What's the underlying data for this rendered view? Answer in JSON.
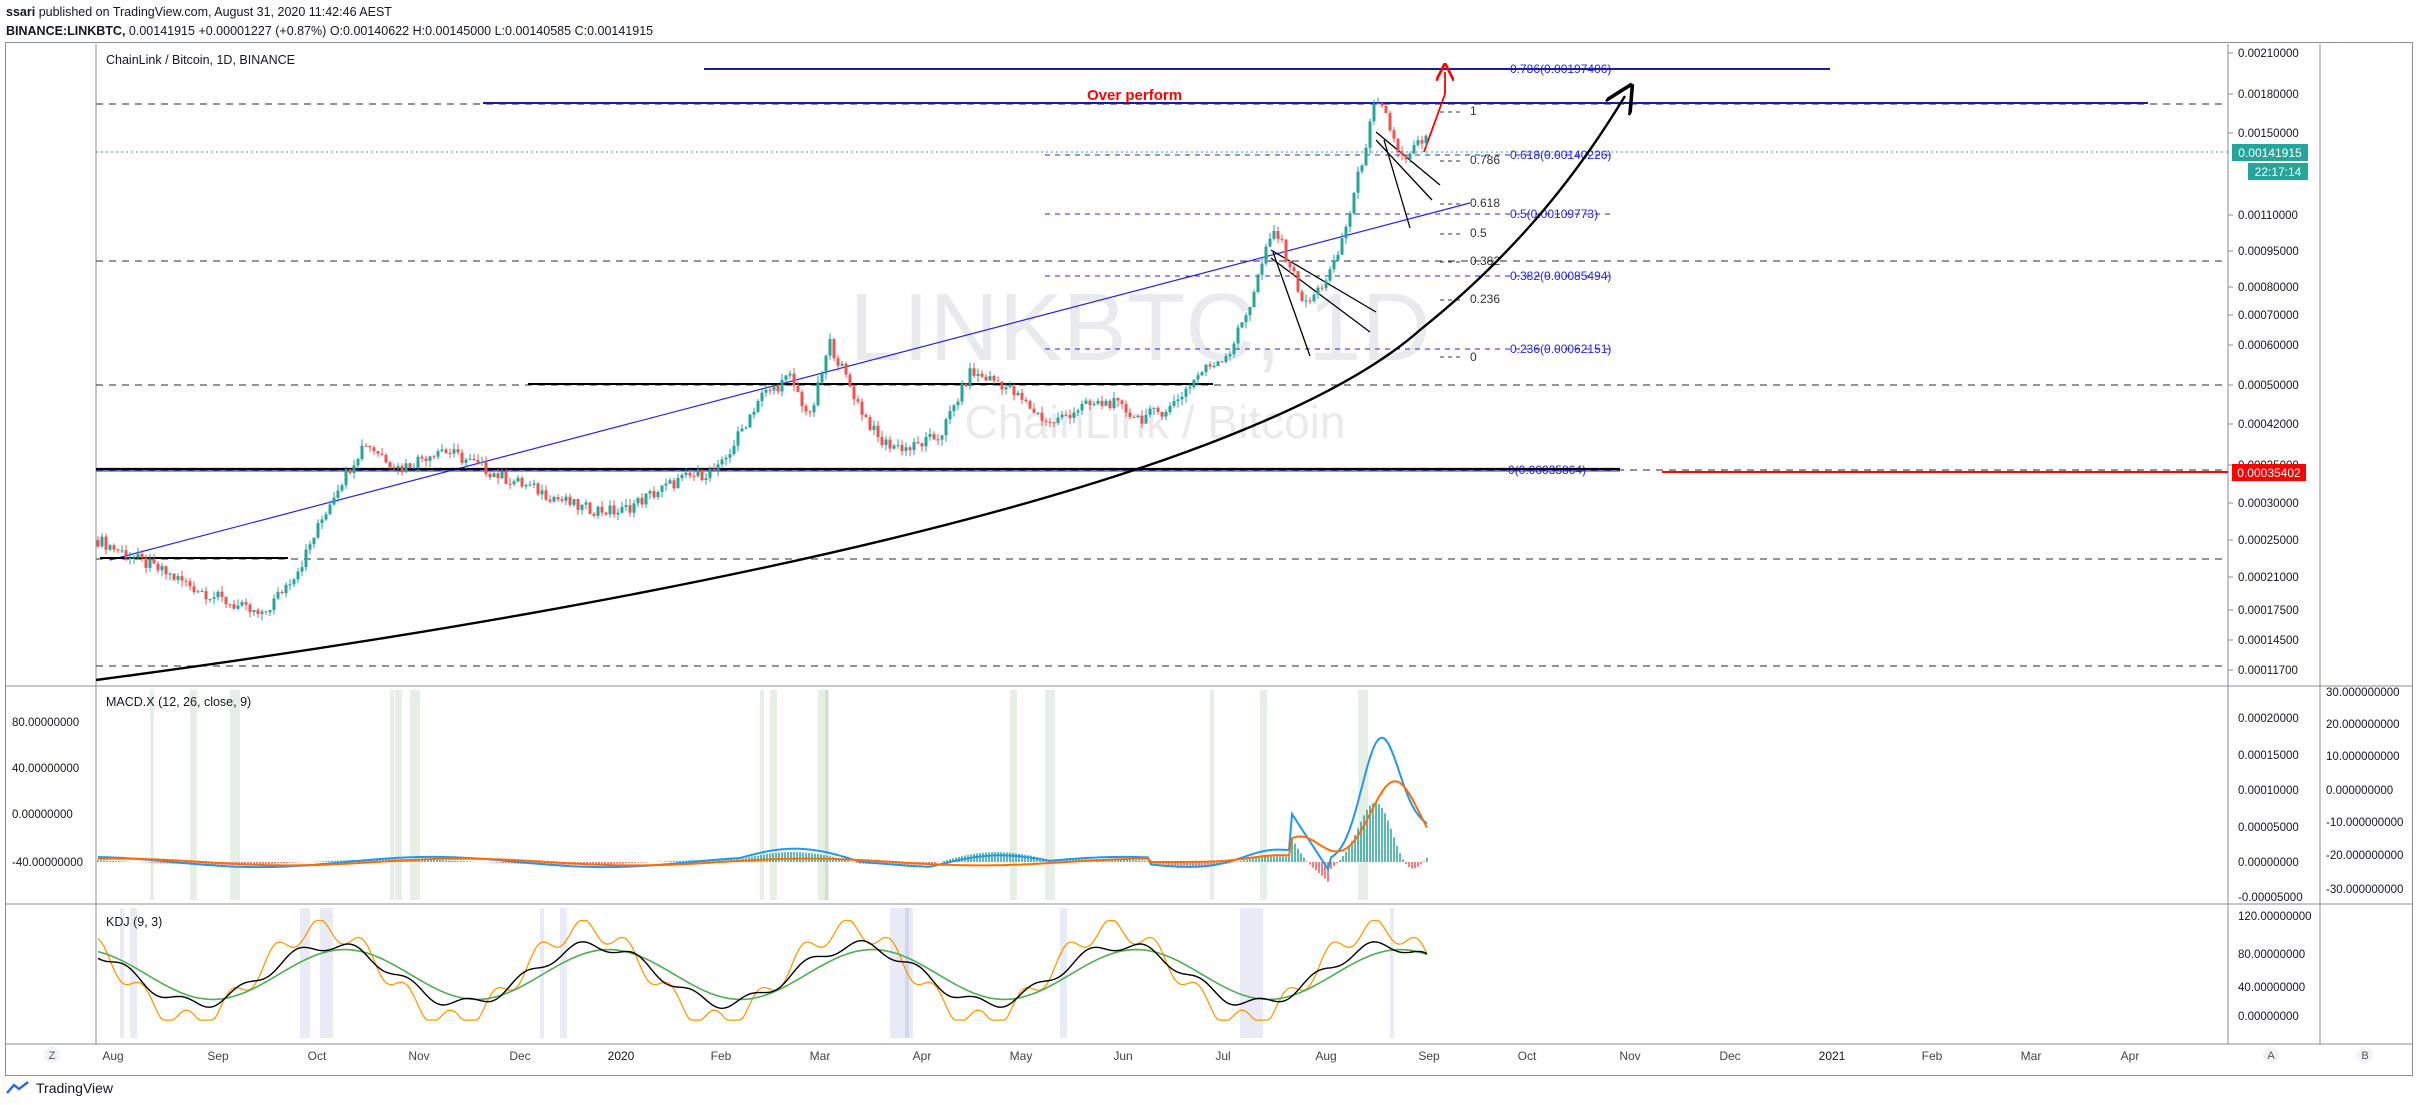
{
  "header": {
    "publisher": "ssari",
    "published_text": "published on TradingView.com, August 31, 2020 11:42:46 AEST",
    "symbol": "BINANCE:LINKBTC,",
    "last": "0.00141915",
    "change": "+0.00001227 (+0.87%)",
    "o_label": "O:",
    "o": "0.00140622",
    "h_label": "H:",
    "h": "0.00145000",
    "l_label": "L:",
    "l": "0.00140585",
    "c_label": "C:",
    "c": "0.00141915"
  },
  "legend": {
    "title": "ChainLink / Bitcoin, 1D, BINANCE"
  },
  "watermark": {
    "ticker": "LINKBTC, 1D",
    "name": "ChainLink / Bitcoin"
  },
  "annotations": {
    "over_perform": "Over perform",
    "fib_top_786": "0.786(0.00197406)",
    "fib_618": "0.618(0.00140226)",
    "fib_5": "0.5(0.00109773)",
    "fib_382": "0.382(0.00085494)",
    "fib_236": "0.236(0.00062151)",
    "fib_0": "0(0.00035864)",
    "small_fib": [
      "1",
      "0.786",
      "0.618",
      "0.5",
      "0.382",
      "0.236",
      "0"
    ]
  },
  "price_axis": {
    "ticks": [
      "0.00210000",
      "0.00180000",
      "0.00150000",
      "0.00110000",
      "0.00095000",
      "0.00080000",
      "0.00070000",
      "0.00060000",
      "0.00050000",
      "0.00042000",
      "0.00035000",
      "0.00030000",
      "0.00025000",
      "0.00021000",
      "0.00017500",
      "0.00014500",
      "0.00011700"
    ],
    "last_price_label": "0.00141915",
    "countdown_label": "22:17:14",
    "alert_label": "0.00035402"
  },
  "macd": {
    "title": "MACD.X (12, 26, close, 9)",
    "left_ticks": [
      "80.00000000",
      "40.00000000",
      "0.00000000",
      "-40.00000000"
    ],
    "mid_ticks": [
      "0.00020000",
      "0.00015000",
      "0.00010000",
      "0.00005000",
      "0.00000000",
      "-0.00005000"
    ],
    "right_ticks": [
      "30.000000000",
      "20.000000000",
      "10.000000000",
      "0.000000000",
      "-10.000000000",
      "-20.000000000",
      "-30.000000000"
    ]
  },
  "kdj": {
    "title": "KDJ (9, 3)",
    "ticks": [
      "120.00000000",
      "80.00000000",
      "40.00000000",
      "0.00000000"
    ]
  },
  "time_axis": {
    "labels": [
      "Aug",
      "Sep",
      "Oct",
      "Nov",
      "Dec",
      "2020",
      "Feb",
      "Mar",
      "Apr",
      "May",
      "Jun",
      "Jul",
      "Aug",
      "Sep",
      "Oct",
      "Nov",
      "Dec",
      "2021",
      "Feb",
      "Mar",
      "Apr"
    ]
  },
  "controls": {
    "left_button": "Z",
    "auto_button": "A",
    "b_button": "B"
  },
  "footer": {
    "brand": "TradingView"
  },
  "colors": {
    "up": "#26a69a",
    "down": "#ef5350",
    "fib": "#2323ee",
    "macd": "#2196f3",
    "signal": "#ff6d00",
    "k": "#000000",
    "d": "#4caf50",
    "j": "#ff9800",
    "red": "#ff0000",
    "accent": "#26a69a"
  },
  "chart_data": {
    "type": "line",
    "title": "ChainLink / Bitcoin, 1D, BINANCE",
    "scale": "log",
    "ylim": [
      0.000116,
      0.00215
    ],
    "x": [
      "Aug",
      "Sep",
      "Oct",
      "Nov",
      "Dec",
      "2020",
      "Feb",
      "Mar",
      "Apr",
      "May",
      "Jun",
      "Jul",
      "Aug",
      "Sep"
    ],
    "series": [
      {
        "values": [
          0.00023,
          0.000165,
          0.00033,
          0.00031,
          0.00028,
          0.00026,
          0.00036,
          0.00044,
          0.00032,
          0.0005,
          0.00042,
          0.0005,
          0.00095,
          0.00141915
        ]
      }
    ],
    "fib_levels": [
      {
        "level": "0.786",
        "price": 0.00197406
      },
      {
        "level": "0.618",
        "price": 0.00140226
      },
      {
        "level": "0.5",
        "price": 0.00109773
      },
      {
        "level": "0.382",
        "price": 0.00085494
      },
      {
        "level": "0.236",
        "price": 0.00062151
      },
      {
        "level": "0",
        "price": 0.00035864
      }
    ],
    "last_price": 0.00141915,
    "grid": false
  }
}
